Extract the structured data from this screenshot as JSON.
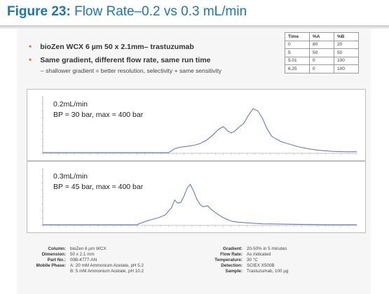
{
  "header": {
    "figure_label": "Figure 23:",
    "figure_title": " Flow Rate–0.2 vs 0.3 mL/min"
  },
  "bullets": [
    "bioZen WCX 6 µm 50 x 2.1mm– trastuzumab",
    "Same gradient, different flow rate, same run time"
  ],
  "sub_bullet": "–  shallower gradient = better resolution, selectivity + same sensitivity",
  "gradient_table": {
    "headers": [
      "Time",
      "%A",
      "%B"
    ],
    "rows": [
      [
        "0",
        "80",
        "20"
      ],
      [
        "5",
        "50",
        "50"
      ],
      [
        "5.01",
        "0",
        "100"
      ],
      [
        "6.25",
        "0",
        "100"
      ]
    ]
  },
  "chart_data": [
    {
      "type": "line",
      "label_lines": [
        "0.2mL/min",
        "BP = 30 bar, max = 400 bar"
      ],
      "color": "#5b6fb5",
      "x_range": [
        0,
        1
      ],
      "y_range": [
        0,
        1
      ],
      "points": [
        [
          0,
          0.0
        ],
        [
          0.05,
          0.0
        ],
        [
          0.1,
          0.0
        ],
        [
          0.15,
          0.0
        ],
        [
          0.2,
          0.0
        ],
        [
          0.25,
          0.0
        ],
        [
          0.3,
          0.0
        ],
        [
          0.35,
          0.0
        ],
        [
          0.4,
          0.0
        ],
        [
          0.41,
          0.04
        ],
        [
          0.42,
          0.09
        ],
        [
          0.44,
          0.12
        ],
        [
          0.46,
          0.14
        ],
        [
          0.48,
          0.16
        ],
        [
          0.5,
          0.2
        ],
        [
          0.52,
          0.27
        ],
        [
          0.54,
          0.38
        ],
        [
          0.56,
          0.52
        ],
        [
          0.575,
          0.58
        ],
        [
          0.59,
          0.48
        ],
        [
          0.6,
          0.44
        ],
        [
          0.61,
          0.47
        ],
        [
          0.625,
          0.57
        ],
        [
          0.64,
          0.65
        ],
        [
          0.655,
          0.83
        ],
        [
          0.67,
          0.98
        ],
        [
          0.685,
          0.93
        ],
        [
          0.7,
          0.76
        ],
        [
          0.715,
          0.52
        ],
        [
          0.73,
          0.36
        ],
        [
          0.745,
          0.3
        ],
        [
          0.76,
          0.24
        ],
        [
          0.78,
          0.2
        ],
        [
          0.8,
          0.16
        ],
        [
          0.82,
          0.12
        ],
        [
          0.85,
          0.08
        ],
        [
          0.88,
          0.05
        ],
        [
          0.92,
          0.03
        ],
        [
          0.96,
          0.02
        ],
        [
          1.0,
          0.02
        ]
      ]
    },
    {
      "type": "line",
      "label_lines": [
        "0.3mL/min",
        "BP = 45 bar, max = 400 bar"
      ],
      "color": "#5b6fb5",
      "x_range": [
        0,
        1
      ],
      "y_range": [
        0,
        1
      ],
      "points": [
        [
          0,
          0.0
        ],
        [
          0.05,
          0.0
        ],
        [
          0.1,
          0.0
        ],
        [
          0.15,
          0.0
        ],
        [
          0.2,
          0.0
        ],
        [
          0.25,
          0.0
        ],
        [
          0.3,
          0.0
        ],
        [
          0.31,
          0.03
        ],
        [
          0.33,
          0.08
        ],
        [
          0.35,
          0.12
        ],
        [
          0.37,
          0.16
        ],
        [
          0.39,
          0.22
        ],
        [
          0.41,
          0.38
        ],
        [
          0.42,
          0.55
        ],
        [
          0.43,
          0.48
        ],
        [
          0.44,
          0.5
        ],
        [
          0.45,
          0.64
        ],
        [
          0.46,
          0.82
        ],
        [
          0.47,
          0.9
        ],
        [
          0.48,
          0.76
        ],
        [
          0.49,
          0.58
        ],
        [
          0.5,
          0.46
        ],
        [
          0.51,
          0.4
        ],
        [
          0.525,
          0.42
        ],
        [
          0.54,
          0.32
        ],
        [
          0.56,
          0.22
        ],
        [
          0.58,
          0.14
        ],
        [
          0.6,
          0.08
        ],
        [
          0.62,
          0.06
        ],
        [
          0.65,
          0.04
        ],
        [
          0.7,
          0.02
        ],
        [
          0.8,
          0.01
        ],
        [
          0.9,
          0.0
        ],
        [
          1.0,
          0.0
        ]
      ]
    }
  ],
  "specs_left": [
    [
      "Column:",
      "bioZen 6 µm WCX"
    ],
    [
      "Dimension:",
      "50 x 2.1 mm"
    ],
    [
      "Part No.:",
      "00B-4777-AN"
    ],
    [
      "Mobile Phase:",
      "A: 20 mM Ammonium Acetate, pH 5.2"
    ],
    [
      "",
      "B: 5 mM Ammonium Acetate, pH 10.2"
    ]
  ],
  "specs_right": [
    [
      "Gradient:",
      "20-50% in 5 minutes"
    ],
    [
      "Flow Rate:",
      "As indicated"
    ],
    [
      "Temperature:",
      "30 °C"
    ],
    [
      "Detection:",
      "SCIEX X500B"
    ],
    [
      "Sample:",
      "Trastuzumab, 100 µg"
    ]
  ]
}
